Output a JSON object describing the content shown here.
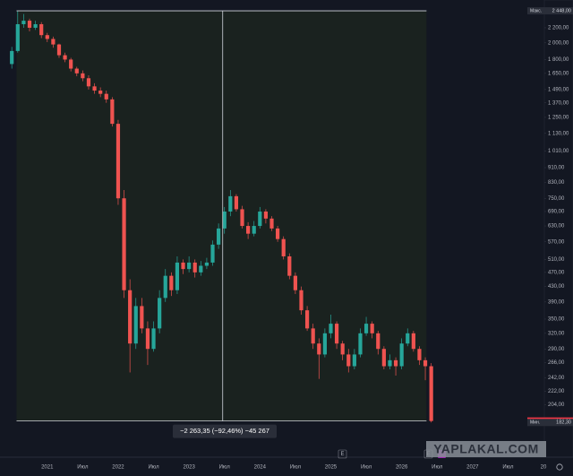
{
  "chart_data": {
    "type": "candlestick",
    "log_scale": true,
    "up_color": "#26a69a",
    "down_color": "#ef5350",
    "open": [
      1750,
      1900,
      2250,
      2300,
      2200,
      2250,
      2100,
      2050,
      1980,
      1850,
      1800,
      1700,
      1650,
      1600,
      1520,
      1480,
      1450,
      1400,
      1200,
      750,
      420,
      300,
      380,
      330,
      290,
      330,
      400,
      460,
      420,
      500,
      480,
      500,
      470,
      490,
      500,
      560,
      620,
      690,
      760,
      700,
      630,
      600,
      630,
      690,
      660,
      620,
      580,
      520,
      460,
      420,
      370,
      330,
      300,
      280,
      320,
      340,
      300,
      280,
      260,
      280,
      320,
      340,
      320,
      290,
      260,
      270,
      260,
      300,
      320,
      290,
      270,
      260
    ],
    "high": [
      1950,
      2448,
      2400,
      2330,
      2300,
      2280,
      2130,
      2080,
      1990,
      1880,
      1820,
      1720,
      1680,
      1630,
      1550,
      1510,
      1480,
      1420,
      1230,
      790,
      450,
      400,
      400,
      345,
      345,
      420,
      480,
      470,
      520,
      510,
      520,
      510,
      505,
      515,
      575,
      640,
      710,
      790,
      770,
      715,
      645,
      650,
      710,
      700,
      670,
      630,
      590,
      530,
      470,
      430,
      380,
      340,
      310,
      330,
      360,
      345,
      305,
      290,
      290,
      330,
      355,
      345,
      325,
      295,
      280,
      275,
      310,
      330,
      325,
      295,
      275,
      265
    ],
    "low": [
      1700,
      1880,
      2200,
      2150,
      2170,
      2060,
      2010,
      1940,
      1820,
      1770,
      1670,
      1620,
      1570,
      1490,
      1450,
      1420,
      1370,
      1180,
      720,
      400,
      250,
      290,
      320,
      262,
      285,
      320,
      390,
      405,
      410,
      465,
      470,
      455,
      460,
      480,
      490,
      545,
      600,
      670,
      690,
      620,
      580,
      590,
      620,
      640,
      610,
      570,
      510,
      450,
      410,
      360,
      325,
      290,
      240,
      275,
      310,
      290,
      270,
      250,
      255,
      275,
      315,
      310,
      280,
      255,
      255,
      245,
      255,
      295,
      285,
      262,
      238,
      182.3
    ],
    "close": [
      1900,
      2250,
      2300,
      2200,
      2250,
      2100,
      2050,
      1980,
      1850,
      1800,
      1700,
      1650,
      1600,
      1520,
      1480,
      1450,
      1400,
      1200,
      750,
      420,
      300,
      380,
      330,
      290,
      330,
      400,
      460,
      420,
      500,
      480,
      500,
      470,
      490,
      500,
      560,
      620,
      690,
      760,
      700,
      630,
      600,
      630,
      690,
      660,
      620,
      580,
      520,
      460,
      420,
      370,
      330,
      300,
      280,
      320,
      340,
      300,
      280,
      260,
      280,
      320,
      340,
      320,
      290,
      260,
      270,
      260,
      300,
      320,
      290,
      270,
      260,
      184
    ],
    "xlim": [
      -2,
      90
    ],
    "xticks": [
      {
        "value": 6,
        "label": "2021"
      },
      {
        "value": 12,
        "label": "Июл"
      },
      {
        "value": 18,
        "label": "2022"
      },
      {
        "value": 24,
        "label": "Июл"
      },
      {
        "value": 30,
        "label": "2023"
      },
      {
        "value": 36,
        "label": "Июл"
      },
      {
        "value": 42,
        "label": "2024"
      },
      {
        "value": 48,
        "label": "Июл"
      },
      {
        "value": 54,
        "label": "2025"
      },
      {
        "value": 60,
        "label": "Июл"
      },
      {
        "value": 66,
        "label": "2026"
      },
      {
        "value": 72,
        "label": "Июл"
      },
      {
        "value": 78,
        "label": "2027"
      },
      {
        "value": 84,
        "label": "Июл"
      },
      {
        "value": 90,
        "label": "20"
      }
    ],
    "ylim": [
      164,
      2548
    ],
    "yticks": [
      {
        "value": 2200,
        "label": "2 200,00"
      },
      {
        "value": 2000,
        "label": "2 000,00"
      },
      {
        "value": 1800,
        "label": "1 800,00"
      },
      {
        "value": 1650,
        "label": "1 650,00"
      },
      {
        "value": 1490,
        "label": "1 490,00"
      },
      {
        "value": 1370,
        "label": "1 370,00"
      },
      {
        "value": 1250,
        "label": "1 250,00"
      },
      {
        "value": 1130,
        "label": "1 130,00"
      },
      {
        "value": 1010,
        "label": "1 010,00"
      },
      {
        "value": 910,
        "label": "910,00"
      },
      {
        "value": 830,
        "label": "830,00"
      },
      {
        "value": 750,
        "label": "750,00"
      },
      {
        "value": 690,
        "label": "690,00"
      },
      {
        "value": 630,
        "label": "630,00"
      },
      {
        "value": 570,
        "label": "570,00"
      },
      {
        "value": 510,
        "label": "510,00"
      },
      {
        "value": 470,
        "label": "470,00"
      },
      {
        "value": 430,
        "label": "430,00"
      },
      {
        "value": 390,
        "label": "390,00"
      },
      {
        "value": 350,
        "label": "350,00"
      },
      {
        "value": 320,
        "label": "320,00"
      },
      {
        "value": 290,
        "label": "290,00"
      },
      {
        "value": 266,
        "label": "266,00"
      },
      {
        "value": 242,
        "label": "242,00"
      },
      {
        "value": 222,
        "label": "222,00"
      },
      {
        "value": 204,
        "label": "204,00"
      }
    ],
    "high_marker": {
      "tag": "Макс.",
      "value": 2448,
      "label": "2 448,00"
    },
    "last_marker": {
      "value": 184,
      "label": "184,00"
    },
    "low_marker": {
      "tag": "Мин.",
      "value": 182.3,
      "label": "182,30"
    },
    "measure_text": "−2 263,35 (−92,46%) −45 267",
    "events": [
      "E",
      "E"
    ],
    "watermark": "YAPLAKAL.COM"
  }
}
